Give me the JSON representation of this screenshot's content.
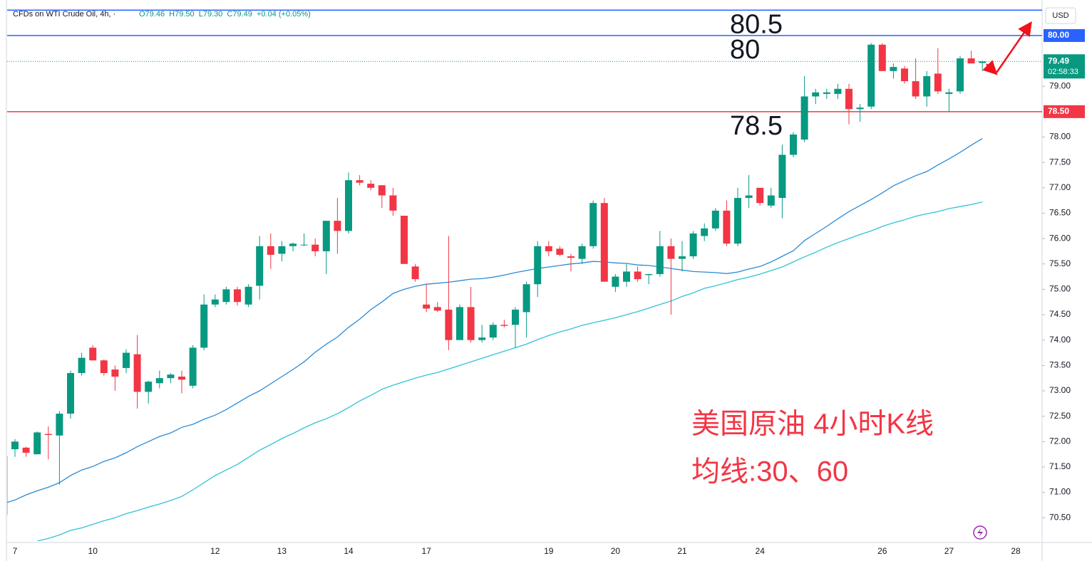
{
  "header": {
    "symbol": "CFDs on WTI Crude Oil, 4h, ·",
    "values": [
      "O79.46",
      "H79.50",
      "L79.30",
      "C79.49",
      "+0.04 (+0.05%)"
    ],
    "currency": "USD"
  },
  "chart_data": {
    "type": "candlestick",
    "note": [
      "美国原油 4小时K线",
      "均线:30、60"
    ],
    "categories": [
      null,
      "7",
      null,
      null,
      null,
      null,
      null,
      null,
      "10",
      null,
      null,
      null,
      null,
      null,
      null,
      null,
      null,
      null,
      null,
      "12",
      null,
      null,
      null,
      null,
      null,
      "13",
      null,
      null,
      null,
      null,
      null,
      "14",
      null,
      null,
      null,
      null,
      null,
      null,
      "17",
      null,
      null,
      null,
      null,
      null,
      null,
      null,
      null,
      null,
      null,
      "19",
      null,
      null,
      null,
      null,
      null,
      "20",
      null,
      null,
      null,
      null,
      null,
      "21",
      null,
      null,
      null,
      null,
      null,
      null,
      "24",
      null,
      null,
      null,
      null,
      null,
      null,
      null,
      null,
      null,
      null,
      "26",
      null,
      null,
      null,
      null,
      null,
      "27",
      null,
      null,
      null,
      null,
      null,
      "28"
    ],
    "candles": {
      "open": [
        70.55,
        71.85,
        71.88,
        71.75,
        72.15,
        72.12,
        72.55,
        73.35,
        73.85,
        73.6,
        73.42,
        73.45,
        73.72,
        72.98,
        73.15,
        73.25,
        73.28,
        73.1,
        73.85,
        74.7,
        74.75,
        75.0,
        74.7,
        75.07,
        75.85,
        75.7,
        75.85,
        75.88,
        75.88,
        75.75,
        76.35,
        76.15,
        77.15,
        77.08,
        77.05,
        76.85,
        76.45,
        75.45,
        74.7,
        74.65,
        74.6,
        74.0,
        74.65,
        74.0,
        74.05,
        74.3,
        74.3,
        74.55,
        75.1,
        75.85,
        75.8,
        75.65,
        75.6,
        75.85,
        76.7,
        75.05,
        75.15,
        75.35,
        75.28,
        75.3,
        75.85,
        75.6,
        75.65,
        76.05,
        76.2,
        76.55,
        75.9,
        76.8,
        77.0,
        76.65,
        76.8,
        77.65,
        77.95,
        78.8,
        78.85,
        78.85,
        78.95,
        78.55,
        78.6,
        79.82,
        79.3,
        79.35,
        79.1,
        78.8,
        79.25,
        78.85,
        78.9,
        79.55,
        79.46,
        null,
        null,
        null
      ],
      "high": [
        71.75,
        72.05,
        71.9,
        72.2,
        72.3,
        72.6,
        73.4,
        73.75,
        73.9,
        73.62,
        73.5,
        73.82,
        74.1,
        73.2,
        73.4,
        73.35,
        73.4,
        73.9,
        74.9,
        74.9,
        75.05,
        75.05,
        75.1,
        76.05,
        76.1,
        75.95,
        75.92,
        76.1,
        76.0,
        76.35,
        76.8,
        77.3,
        77.25,
        77.15,
        77.05,
        77.0,
        76.45,
        75.5,
        75.1,
        74.75,
        76.05,
        74.7,
        75.05,
        74.3,
        74.35,
        74.4,
        74.65,
        75.15,
        75.95,
        75.95,
        75.85,
        75.7,
        75.9,
        76.75,
        76.8,
        75.3,
        75.5,
        75.45,
        75.3,
        76.15,
        76.0,
        75.95,
        76.15,
        76.3,
        76.6,
        76.75,
        77.0,
        77.25,
        77.0,
        77.0,
        77.85,
        78.1,
        79.2,
        78.95,
        78.95,
        79.05,
        79.05,
        78.65,
        79.85,
        79.85,
        79.45,
        79.4,
        79.55,
        79.3,
        79.75,
        78.95,
        79.6,
        79.7,
        79.5,
        null,
        null,
        null
      ],
      "low": [
        70.55,
        71.7,
        71.7,
        71.75,
        71.65,
        71.15,
        72.45,
        73.3,
        73.6,
        73.3,
        73.0,
        73.35,
        72.65,
        72.75,
        73.05,
        73.15,
        72.95,
        73.05,
        73.8,
        74.65,
        74.7,
        74.68,
        74.65,
        74.8,
        75.4,
        75.55,
        75.75,
        75.85,
        75.65,
        75.3,
        75.7,
        76.1,
        77.05,
        76.95,
        76.6,
        76.45,
        75.5,
        75.15,
        74.55,
        74.55,
        73.8,
        74.0,
        73.95,
        73.95,
        74.0,
        74.25,
        73.85,
        74.05,
        74.85,
        75.65,
        75.65,
        75.35,
        75.5,
        75.8,
        75.15,
        74.95,
        75.05,
        75.15,
        75.1,
        75.25,
        74.5,
        75.35,
        75.6,
        75.95,
        76.15,
        75.85,
        75.85,
        76.6,
        76.65,
        76.6,
        76.4,
        77.6,
        77.9,
        78.65,
        78.75,
        78.75,
        78.25,
        78.3,
        78.55,
        79.3,
        79.15,
        79.05,
        78.75,
        78.6,
        78.85,
        78.5,
        78.85,
        79.45,
        79.3,
        null,
        null,
        null
      ],
      "close": [
        71.72,
        72.0,
        71.78,
        72.18,
        72.13,
        72.55,
        73.35,
        73.65,
        73.6,
        73.35,
        73.28,
        73.75,
        72.98,
        73.18,
        73.25,
        73.32,
        73.22,
        73.85,
        74.7,
        74.8,
        75.0,
        74.75,
        75.05,
        75.85,
        75.68,
        75.85,
        75.9,
        75.88,
        75.75,
        76.35,
        76.15,
        77.15,
        77.1,
        77.0,
        76.85,
        76.55,
        75.5,
        75.2,
        74.62,
        74.58,
        74.0,
        74.65,
        74.0,
        74.05,
        74.3,
        74.28,
        74.6,
        75.1,
        75.85,
        75.75,
        75.68,
        75.62,
        75.85,
        76.7,
        75.15,
        75.25,
        75.35,
        75.2,
        75.3,
        75.85,
        75.6,
        75.65,
        76.1,
        76.2,
        76.55,
        75.9,
        76.8,
        76.85,
        76.7,
        76.85,
        77.65,
        78.05,
        78.8,
        78.88,
        78.88,
        78.95,
        78.55,
        78.58,
        79.82,
        79.3,
        79.38,
        79.1,
        78.8,
        79.2,
        78.9,
        78.88,
        79.55,
        79.45,
        79.49,
        null,
        null,
        null
      ]
    },
    "up_color": "#089981",
    "down_color": "#f23645",
    "series": [
      {
        "color": "#2a8bd8",
        "values": [
          70.78,
          70.85,
          70.95,
          71.03,
          71.1,
          71.19,
          71.33,
          71.44,
          71.51,
          71.61,
          71.68,
          71.78,
          71.9,
          72.0,
          72.1,
          72.17,
          72.28,
          72.34,
          72.44,
          72.52,
          72.63,
          72.76,
          72.89,
          73.0,
          73.14,
          73.28,
          73.42,
          73.57,
          73.76,
          73.92,
          74.06,
          74.25,
          74.41,
          74.6,
          74.75,
          74.92,
          75.0,
          75.06,
          75.1,
          75.12,
          75.14,
          75.17,
          75.2,
          75.21,
          75.24,
          75.28,
          75.33,
          75.37,
          75.41,
          75.44,
          75.47,
          75.5,
          75.52,
          75.55,
          75.54,
          75.52,
          75.51,
          75.48,
          75.47,
          75.44,
          75.41,
          75.38,
          75.35,
          75.34,
          75.33,
          75.31,
          75.34,
          75.4,
          75.45,
          75.54,
          75.65,
          75.76,
          75.96,
          76.1,
          76.24,
          76.39,
          76.53,
          76.65,
          76.77,
          76.9,
          77.04,
          77.14,
          77.24,
          77.32,
          77.45,
          77.57,
          77.7,
          77.84,
          77.97,
          null,
          null,
          null
        ]
      },
      {
        "color": "#2fc3d6",
        "values": [
          null,
          null,
          null,
          70.04,
          70.09,
          70.16,
          70.25,
          70.3,
          70.37,
          70.44,
          70.5,
          70.58,
          70.64,
          70.71,
          70.77,
          70.84,
          70.92,
          71.05,
          71.19,
          71.33,
          71.44,
          71.55,
          71.69,
          71.83,
          71.94,
          72.06,
          72.16,
          72.27,
          72.37,
          72.45,
          72.55,
          72.67,
          72.8,
          72.91,
          73.03,
          73.11,
          73.18,
          73.25,
          73.31,
          73.36,
          73.43,
          73.5,
          73.57,
          73.64,
          73.71,
          73.78,
          73.85,
          73.92,
          74.01,
          74.09,
          74.16,
          74.22,
          74.29,
          74.34,
          74.39,
          74.44,
          74.5,
          74.56,
          74.63,
          74.7,
          74.77,
          74.86,
          74.93,
          75.02,
          75.07,
          75.13,
          75.19,
          75.24,
          75.3,
          75.37,
          75.44,
          75.54,
          75.64,
          75.73,
          75.83,
          75.92,
          76.0,
          76.08,
          76.15,
          76.24,
          76.31,
          76.37,
          76.44,
          76.49,
          76.53,
          76.59,
          76.63,
          76.67,
          76.72,
          null,
          null,
          null
        ]
      }
    ],
    "ylim": [
      70.04,
      80.7
    ],
    "yticks": [
      {
        "value": 70.5,
        "label": "70.50"
      },
      {
        "value": 71,
        "label": "71.00"
      },
      {
        "value": 71.5,
        "label": "71.50"
      },
      {
        "value": 72,
        "label": "72.00"
      },
      {
        "value": 72.5,
        "label": "72.50"
      },
      {
        "value": 73,
        "label": "73.00"
      },
      {
        "value": 73.5,
        "label": "73.50"
      },
      {
        "value": 74,
        "label": "74.00"
      },
      {
        "value": 74.5,
        "label": "74.50"
      },
      {
        "value": 75,
        "label": "75.00"
      },
      {
        "value": 75.5,
        "label": "75.50"
      },
      {
        "value": 76,
        "label": "76.00"
      },
      {
        "value": 76.5,
        "label": "76.50"
      },
      {
        "value": 77,
        "label": "77.00"
      },
      {
        "value": 77.5,
        "label": "77.50"
      },
      {
        "value": 78,
        "label": "78.00"
      },
      {
        "value": 79,
        "label": "79.00"
      }
    ],
    "grid": false,
    "levels": [
      {
        "value": 80.5,
        "color": "#2962ff",
        "annotation": "80.5"
      },
      {
        "value": 80,
        "label": "80.00",
        "color": "#2962ff",
        "annotation": "80"
      },
      {
        "value": 78.5,
        "label": "78.50",
        "color": "#f23645",
        "annotation": "78.5"
      }
    ],
    "annotation_color": "#f23645",
    "last": {
      "value": 79.49,
      "label": "79.49",
      "countdown": "02:58:33",
      "color": "#089981"
    }
  }
}
